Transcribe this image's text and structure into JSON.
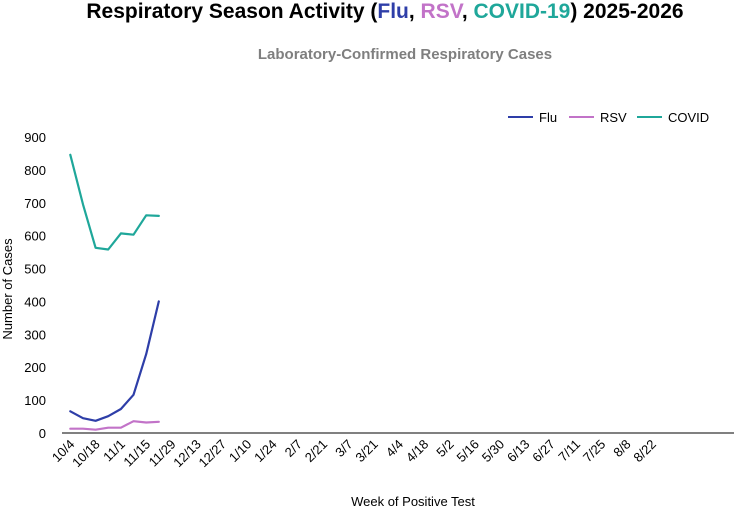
{
  "chart_data": {
    "type": "line",
    "title": {
      "prefix": "Respiratory Season Activity (",
      "parts": [
        {
          "text": "Flu",
          "color": "#2e3ea8"
        },
        {
          "text": ", ",
          "color": "#000000"
        },
        {
          "text": "RSV",
          "color": "#c273c8"
        },
        {
          "text": ", ",
          "color": "#000000"
        },
        {
          "text": "COVID-19",
          "color": "#1fa79a"
        }
      ],
      "suffix": ") 2025-2026"
    },
    "subtitle": "Laboratory-Confirmed Respiratory Cases",
    "xlabel": "Week of Positive Test",
    "ylabel": "Number of Cases",
    "ylim": [
      0,
      900
    ],
    "yticks": [
      0,
      100,
      200,
      300,
      400,
      500,
      600,
      700,
      800,
      900
    ],
    "week_count": 53,
    "x_tick_labels": [
      "10/4",
      "10/18",
      "11/1",
      "11/15",
      "11/29",
      "12/13",
      "12/27",
      "1/10",
      "1/24",
      "2/7",
      "2/21",
      "3/7",
      "3/21",
      "4/4",
      "4/18",
      "5/2",
      "5/16",
      "5/30",
      "6/13",
      "6/27",
      "7/11",
      "7/25",
      "8/8",
      "8/22"
    ],
    "x_tick_every": 2,
    "legend_position": "top-right",
    "series": [
      {
        "name": "Flu",
        "color": "#2e3ea8",
        "values": [
          66,
          45,
          37,
          51,
          73,
          116,
          240,
          400
        ]
      },
      {
        "name": "RSV",
        "color": "#c273c8",
        "values": [
          13,
          13,
          10,
          16,
          16,
          36,
          32,
          34
        ]
      },
      {
        "name": "COVID",
        "color": "#1fa79a",
        "values": [
          846,
          695,
          563,
          558,
          607,
          603,
          662,
          660
        ]
      }
    ]
  }
}
